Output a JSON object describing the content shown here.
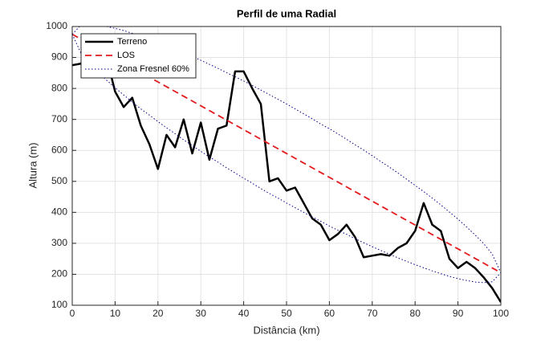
{
  "chart_data": {
    "type": "line",
    "title": "Perfil de uma Radial",
    "x_label": "Distância (km)",
    "y_label": "Altura (m)",
    "xlim": [
      0,
      100
    ],
    "ylim": [
      100,
      1000
    ],
    "xticks": [
      0,
      10,
      20,
      30,
      40,
      50,
      60,
      70,
      80,
      90,
      100
    ],
    "yticks": [
      100,
      200,
      300,
      400,
      500,
      600,
      700,
      800,
      900,
      1000
    ],
    "grid": true,
    "legend": "upper-left",
    "x": [
      0,
      2,
      4,
      6,
      8,
      10,
      12,
      14,
      16,
      18,
      20,
      22,
      24,
      26,
      28,
      30,
      32,
      34,
      36,
      38,
      40,
      42,
      44,
      46,
      48,
      50,
      52,
      54,
      56,
      58,
      60,
      62,
      64,
      66,
      68,
      70,
      72,
      74,
      76,
      78,
      80,
      82,
      84,
      86,
      88,
      90,
      92,
      94,
      96,
      98,
      100
    ],
    "series": [
      {
        "name": "Terreno",
        "color": "#000000",
        "style": "solid",
        "values": [
          875,
          880,
          920,
          945,
          900,
          790,
          740,
          770,
          680,
          620,
          540,
          650,
          610,
          700,
          590,
          690,
          570,
          670,
          680,
          855,
          855,
          800,
          750,
          500,
          510,
          470,
          480,
          430,
          380,
          360,
          310,
          330,
          360,
          320,
          255,
          260,
          265,
          260,
          285,
          300,
          340,
          430,
          360,
          340,
          250,
          220,
          240,
          220,
          190,
          155,
          110
        ]
      },
      {
        "name": "LOS",
        "color": "#e31a1c",
        "style": "dashed",
        "values": [
          975,
          959.6,
          944.2,
          928.8,
          913.4,
          898,
          882.6,
          867.2,
          851.8,
          836.4,
          821,
          805.6,
          790.2,
          774.8,
          759.4,
          744,
          728.6,
          713.2,
          697.8,
          682.4,
          667,
          651.6,
          636.2,
          620.8,
          605.4,
          590,
          574.6,
          559.2,
          543.8,
          528.4,
          513,
          497.6,
          482.2,
          466.8,
          451.4,
          436,
          420.6,
          405.2,
          389.8,
          374.4,
          359,
          343.6,
          328.2,
          312.8,
          297.4,
          282,
          266.6,
          251.2,
          235.8,
          220.4,
          205
        ]
      },
      {
        "name": "Zona Fresnel 60%",
        "color": "#00008b",
        "style": "dotted",
        "upper": [
          975,
          1004,
          1007,
          1005,
          1000,
          994,
          987,
          978,
          969,
          959,
          949,
          938,
          927,
          915,
          903,
          891,
          878,
          865,
          851,
          838,
          824,
          810,
          795,
          780,
          765,
          750,
          734,
          718,
          702,
          685,
          670,
          653,
          636,
          618,
          601,
          583,
          564,
          546,
          527,
          507,
          487,
          467,
          446,
          424,
          401,
          378,
          353,
          327,
          299,
          265,
          205
        ],
        "lower": [
          975,
          915,
          882,
          853,
          827,
          802,
          779,
          756,
          734,
          714,
          693,
          673,
          654,
          634,
          616,
          597,
          579,
          562,
          544,
          527,
          510,
          494,
          477,
          461,
          446,
          430,
          415,
          400,
          385,
          371,
          356,
          342,
          329,
          315,
          302,
          289,
          277,
          265,
          253,
          242,
          231,
          221,
          211,
          202,
          193,
          186,
          180,
          175,
          173,
          176,
          205
        ]
      }
    ]
  }
}
